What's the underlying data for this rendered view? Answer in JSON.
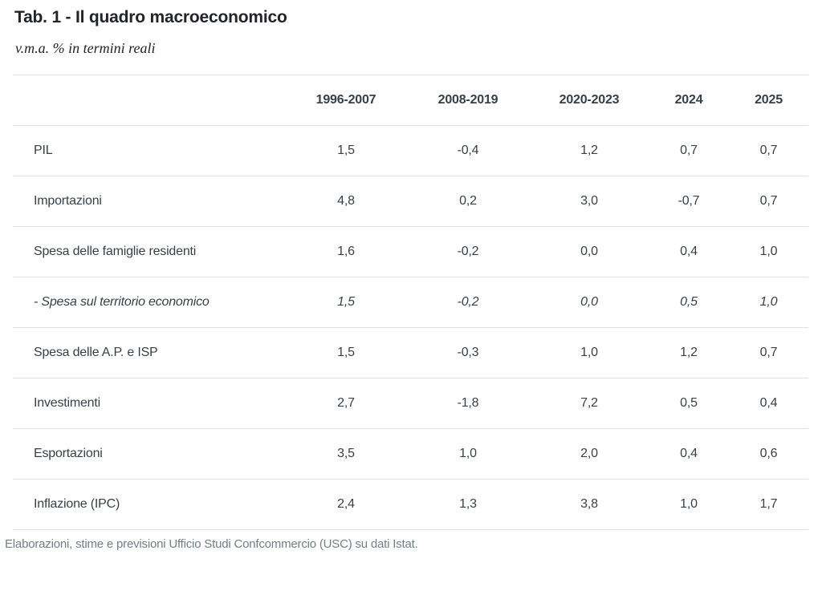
{
  "title": "Tab. 1 - Il quadro macroeconomico",
  "subtitle": "v.m.a. % in termini reali",
  "table": {
    "columns": [
      "1996-2007",
      "2008-2019",
      "2020-2023",
      "2024",
      "2025"
    ],
    "rows": [
      {
        "label": "PIL",
        "italic": false,
        "values": [
          "1,5",
          "-0,4",
          "1,2",
          "0,7",
          "0,7"
        ]
      },
      {
        "label": "Importazioni",
        "italic": false,
        "values": [
          "4,8",
          "0,2",
          "3,0",
          "-0,7",
          "0,7"
        ]
      },
      {
        "label": "Spesa delle famiglie residenti",
        "italic": false,
        "values": [
          "1,6",
          "-0,2",
          "0,0",
          "0,4",
          "1,0"
        ]
      },
      {
        "label": "- Spesa sul territorio economico",
        "italic": true,
        "values": [
          "1,5",
          "-0,2",
          "0,0",
          "0,5",
          "1,0"
        ]
      },
      {
        "label": "Spesa delle A.P. e ISP",
        "italic": false,
        "values": [
          "1,5",
          "-0,3",
          "1,0",
          "1,2",
          "0,7"
        ]
      },
      {
        "label": "Investimenti",
        "italic": false,
        "values": [
          "2,7",
          "-1,8",
          "7,2",
          "0,5",
          "0,4"
        ]
      },
      {
        "label": "Esportazioni",
        "italic": false,
        "values": [
          "3,5",
          "1,0",
          "2,0",
          "0,4",
          "0,6"
        ]
      },
      {
        "label": "Inflazione (IPC)",
        "italic": false,
        "values": [
          "2,4",
          "1,3",
          "3,8",
          "1,0",
          "1,7"
        ]
      }
    ]
  },
  "footnote": "Elaborazioni, stime e previsioni Ufficio Studi Confcommercio (USC) su dati Istat.",
  "colors": {
    "title": "#222427",
    "text": "#3a3f45",
    "footnote": "#767d85",
    "rule": "#dfe1e3",
    "background": "#ffffff"
  },
  "chart_data": {
    "type": "table",
    "title": "Tab. 1 - Il quadro macroeconomico",
    "subtitle": "v.m.a. % in termini reali",
    "unit": "v.m.a. % in termini reali",
    "categories": [
      "1996-2007",
      "2008-2019",
      "2020-2023",
      "2024",
      "2025"
    ],
    "series": [
      {
        "name": "PIL",
        "values": [
          1.5,
          -0.4,
          1.2,
          0.7,
          0.7
        ]
      },
      {
        "name": "Importazioni",
        "values": [
          4.8,
          0.2,
          3.0,
          -0.7,
          0.7
        ]
      },
      {
        "name": "Spesa delle famiglie residenti",
        "values": [
          1.6,
          -0.2,
          0.0,
          0.4,
          1.0
        ]
      },
      {
        "name": "- Spesa sul territorio economico",
        "values": [
          1.5,
          -0.2,
          0.0,
          0.5,
          1.0
        ]
      },
      {
        "name": "Spesa delle A.P. e ISP",
        "values": [
          1.5,
          -0.3,
          1.0,
          1.2,
          0.7
        ]
      },
      {
        "name": "Investimenti",
        "values": [
          2.7,
          -1.8,
          7.2,
          0.5,
          0.4
        ]
      },
      {
        "name": "Esportazioni",
        "values": [
          3.5,
          1.0,
          2.0,
          0.4,
          0.6
        ]
      },
      {
        "name": "Inflazione (IPC)",
        "values": [
          2.4,
          1.3,
          3.8,
          1.0,
          1.7
        ]
      }
    ],
    "source_note": "Elaborazioni, stime e previsioni Ufficio Studi Confcommercio (USC) su dati Istat."
  }
}
